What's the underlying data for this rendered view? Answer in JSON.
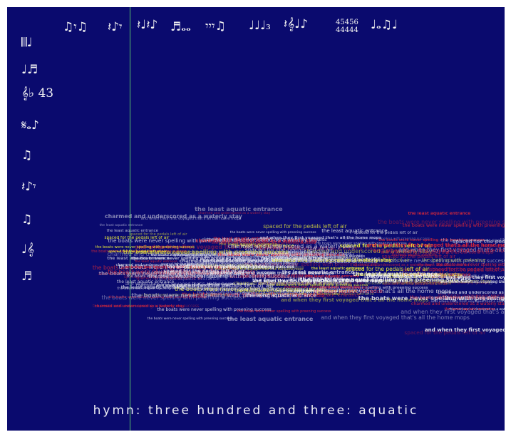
{
  "title": "hymn: three hundred and three: aquatic",
  "top_notation": [
    {
      "glyphs": "♫𝄾♫",
      "kind": "normal"
    },
    {
      "glyphs": "𝄽♪𝄾",
      "kind": "normal"
    },
    {
      "glyphs": "𝄽♩𝄽♪",
      "kind": "normal"
    },
    {
      "glyphs": "♬𝅝𝅝",
      "kind": "normal"
    },
    {
      "glyphs": "𝄾𝄾𝄾♫",
      "kind": "normal"
    },
    {
      "glyphs": "♩♩♩₃",
      "kind": "normal"
    },
    {
      "glyphs": "𝄽𝄞♩♪",
      "kind": "normal"
    },
    {
      "glyphs": "45456\n44444",
      "kind": "small"
    },
    {
      "glyphs": "♩𝅝♫♩",
      "kind": "normal"
    }
  ],
  "left_notation": [
    "𝄃𝄂♩",
    "♩♬",
    "𝄞♭ 43",
    "𝄋𝅝♪",
    "♫",
    "𝄽♪𝄾",
    "♫",
    "♩𝄞",
    "♬"
  ],
  "phrases": [
    "the boats were never spelling with preening success",
    "the boats were never spelling with preening success",
    "the boats were never spelling with preening success",
    "the least aquatic entrance",
    "the least aquatic entrance",
    "charmed and underscored as a waterly stay",
    "charmed and underscored as a waterly stay",
    "and when they first voyaged that's all the home mops",
    "and when they first voyaged that's all the home mops",
    "spaced for the pedals left of air",
    "spaced for the pedals left of air",
    "the boats were never spelling with preening success",
    "the least aquatic entrance"
  ],
  "colors": {
    "background": "#0a0a6e",
    "playhead": "#5fd36a",
    "text_white": "#f2f2f2",
    "text_yellow": "#e8e83a",
    "text_red": "#d8283a"
  }
}
